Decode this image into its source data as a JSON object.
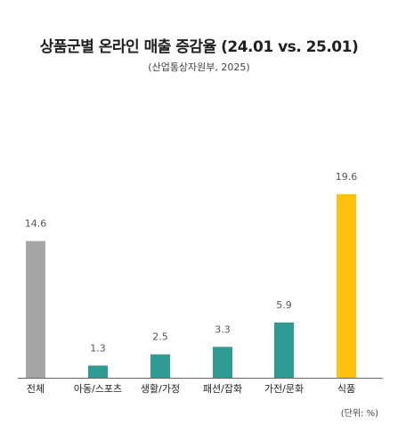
{
  "chart_data": {
    "type": "bar",
    "title": "상품군별 온라인 매출 증감율 (24.01 vs. 25.01)",
    "subtitle": "(산업통상자원부, 2025)",
    "unit_label": "(단위: %)",
    "categories": [
      "전체",
      "아동/스포츠",
      "생활/가정",
      "패션/잡화",
      "가전/문화",
      "식품"
    ],
    "values": [
      14.6,
      1.3,
      2.5,
      3.3,
      5.9,
      19.6
    ],
    "value_labels": [
      "14.6",
      "1.3",
      "2.5",
      "3.3",
      "5.9",
      "19.6"
    ],
    "colors": [
      "#a6a6a6",
      "#2e9c93",
      "#2e9c93",
      "#2e9c93",
      "#2e9c93",
      "#fec10e"
    ],
    "ylim": [
      0,
      19.6
    ],
    "grid": false,
    "legend": "none"
  }
}
